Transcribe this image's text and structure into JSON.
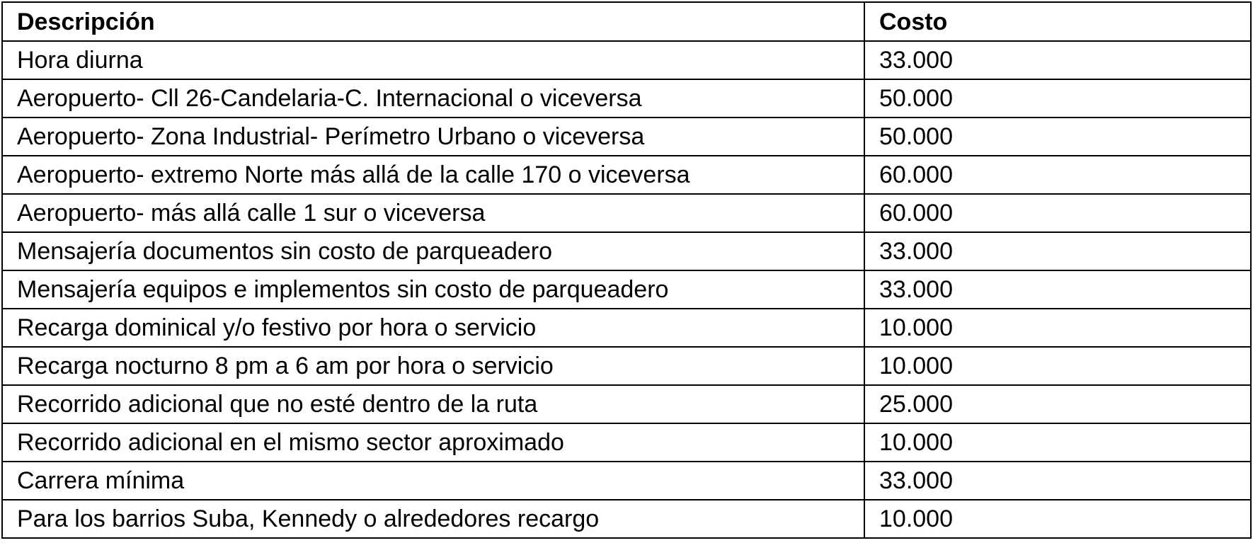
{
  "table": {
    "headers": {
      "description": "Descripción",
      "cost": "Costo"
    },
    "rows": [
      {
        "description": "Hora diurna",
        "cost": "33.000"
      },
      {
        "description": "Aeropuerto- Cll 26-Candelaria-C. Internacional o viceversa",
        "cost": "50.000"
      },
      {
        "description": "Aeropuerto- Zona Industrial- Perímetro Urbano o viceversa",
        "cost": "50.000"
      },
      {
        "description": "Aeropuerto- extremo Norte más allá de la calle 170 o viceversa",
        "cost": "60.000"
      },
      {
        "description": "Aeropuerto- más allá calle 1 sur o viceversa",
        "cost": "60.000"
      },
      {
        "description": "Mensajería documentos sin costo de parqueadero",
        "cost": "33.000"
      },
      {
        "description": "Mensajería equipos e implementos sin costo de parqueadero",
        "cost": "33.000"
      },
      {
        "description": "Recarga dominical y/o festivo por hora o servicio",
        "cost": "10.000"
      },
      {
        "description": "Recarga nocturno 8 pm a 6 am por hora o servicio",
        "cost": "10.000"
      },
      {
        "description": "Recorrido adicional que no esté dentro de la ruta",
        "cost": "25.000"
      },
      {
        "description": "Recorrido adicional en el mismo sector aproximado",
        "cost": "10.000"
      },
      {
        "description": "Carrera mínima",
        "cost": "33.000"
      },
      {
        "description": "Para los barrios Suba, Kennedy o alrededores recargo",
        "cost": "10.000"
      }
    ]
  }
}
